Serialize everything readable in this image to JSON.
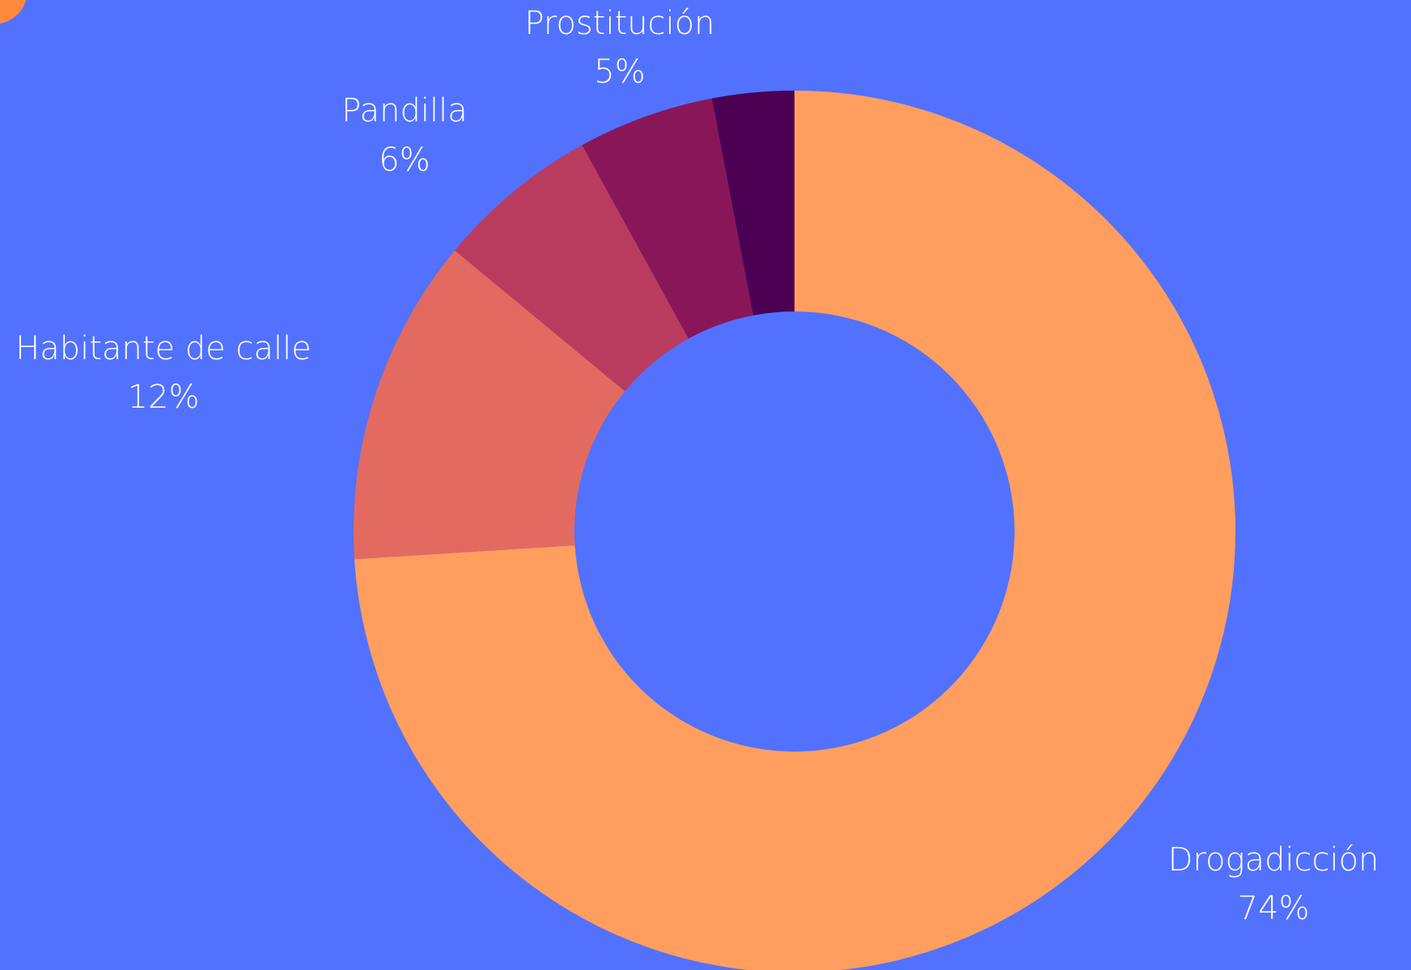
{
  "chart_data": {
    "type": "donut",
    "categories": [
      "Drogadicción",
      "Habitante de calle",
      "Pandilla",
      "Prostitución",
      null
    ],
    "values": [
      74,
      12,
      6,
      5,
      3
    ],
    "value_labels": [
      "74%",
      "12%",
      "6%",
      "5%",
      null
    ],
    "colors": [
      "#FF9E5F",
      "#E36A60",
      "#B93C5E",
      "#891659",
      "#4B0053"
    ],
    "background": "#5271FF"
  }
}
